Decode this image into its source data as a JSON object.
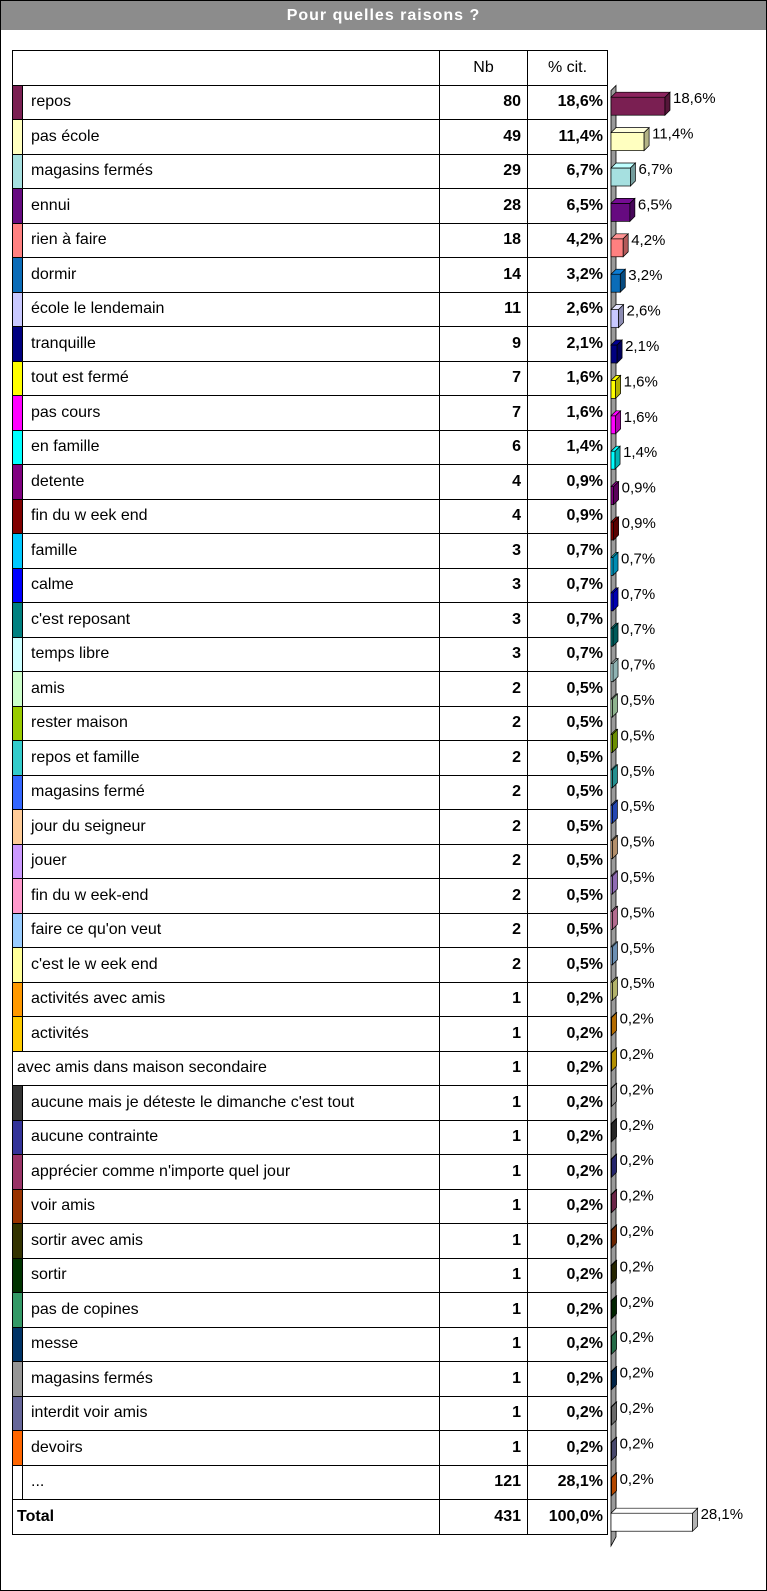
{
  "title": "Pour quelles raisons ?",
  "headers": {
    "nb": "Nb",
    "pct": "% cit."
  },
  "rows": [
    {
      "label": "repos",
      "nb": "80",
      "pct": "18,6%",
      "color": "#7a1f52"
    },
    {
      "label": "pas école",
      "nb": "49",
      "pct": "11,4%",
      "color": "#ffffc0"
    },
    {
      "label": "magasins fermés",
      "nb": "29",
      "pct": "6,7%",
      "color": "#a6e0e0"
    },
    {
      "label": "ennui",
      "nb": "28",
      "pct": "6,5%",
      "color": "#660a80"
    },
    {
      "label": "rien à faire",
      "nb": "18",
      "pct": "4,2%",
      "color": "#ff8080"
    },
    {
      "label": "dormir",
      "nb": "14",
      "pct": "3,2%",
      "color": "#0a6cb8"
    },
    {
      "label": "école le lendemain",
      "nb": "11",
      "pct": "2,6%",
      "color": "#c8c8ff"
    },
    {
      "label": "tranquille",
      "nb": "9",
      "pct": "2,1%",
      "color": "#000080"
    },
    {
      "label": "tout est fermé",
      "nb": "7",
      "pct": "1,6%",
      "color": "#ffff00"
    },
    {
      "label": "pas cours",
      "nb": "7",
      "pct": "1,6%",
      "color": "#ff00ff"
    },
    {
      "label": "en famille",
      "nb": "6",
      "pct": "1,4%",
      "color": "#00ffff"
    },
    {
      "label": "detente",
      "nb": "4",
      "pct": "0,9%",
      "color": "#800080"
    },
    {
      "label": "fin du w eek end",
      "nb": "4",
      "pct": "0,9%",
      "color": "#800000"
    },
    {
      "label": "famille",
      "nb": "3",
      "pct": "0,7%",
      "color": "#00c8ff"
    },
    {
      "label": "calme",
      "nb": "3",
      "pct": "0,7%",
      "color": "#0000ff"
    },
    {
      "label": "c'est reposant",
      "nb": "3",
      "pct": "0,7%",
      "color": "#008080"
    },
    {
      "label": "temps libre",
      "nb": "3",
      "pct": "0,7%",
      "color": "#ccffff"
    },
    {
      "label": "amis",
      "nb": "2",
      "pct": "0,5%",
      "color": "#ccffcc"
    },
    {
      "label": "rester maison",
      "nb": "2",
      "pct": "0,5%",
      "color": "#99cc00"
    },
    {
      "label": "repos et famille",
      "nb": "2",
      "pct": "0,5%",
      "color": "#33cccc"
    },
    {
      "label": "magasins fermé",
      "nb": "2",
      "pct": "0,5%",
      "color": "#3366ff"
    },
    {
      "label": "jour du seigneur",
      "nb": "2",
      "pct": "0,5%",
      "color": "#ffcc99"
    },
    {
      "label": "jouer",
      "nb": "2",
      "pct": "0,5%",
      "color": "#cc99ff"
    },
    {
      "label": "fin du w eek-end",
      "nb": "2",
      "pct": "0,5%",
      "color": "#ff99cc"
    },
    {
      "label": "faire ce qu'on veut",
      "nb": "2",
      "pct": "0,5%",
      "color": "#99ccff"
    },
    {
      "label": "c'est le w eek end",
      "nb": "2",
      "pct": "0,5%",
      "color": "#ffff99"
    },
    {
      "label": " activités avec amis",
      "nb": "1",
      "pct": "0,2%",
      "color": "#ff9900"
    },
    {
      "label": " activités",
      "nb": "1",
      "pct": "0,2%",
      "color": "#ffcc00"
    },
    {
      "label": "avec amis dans maison secondaire",
      "nb": "1",
      "pct": "0,2%",
      "color": ""
    },
    {
      "label": "aucune mais je déteste le dimanche c'est tout",
      "nb": "1",
      "pct": "0,2%",
      "color": "#333333"
    },
    {
      "label": "aucune contrainte",
      "nb": "1",
      "pct": "0,2%",
      "color": "#333399"
    },
    {
      "label": "apprécier comme n'importe quel jour",
      "nb": "1",
      "pct": "0,2%",
      "color": "#993366"
    },
    {
      "label": " voir amis",
      "nb": "1",
      "pct": "0,2%",
      "color": "#993300"
    },
    {
      "label": " sortir avec amis",
      "nb": "1",
      "pct": "0,2%",
      "color": "#333300"
    },
    {
      "label": " sortir",
      "nb": "1",
      "pct": "0,2%",
      "color": "#003300"
    },
    {
      "label": " pas de copines",
      "nb": "1",
      "pct": "0,2%",
      "color": "#339966"
    },
    {
      "label": " messe",
      "nb": "1",
      "pct": "0,2%",
      "color": "#003366"
    },
    {
      "label": " magasins fermés",
      "nb": "1",
      "pct": "0,2%",
      "color": "#969696"
    },
    {
      "label": " interdit voir amis",
      "nb": "1",
      "pct": "0,2%",
      "color": "#666699"
    },
    {
      "label": " devoirs",
      "nb": "1",
      "pct": "0,2%",
      "color": "#ff6600"
    },
    {
      "label": "...",
      "nb": "121",
      "pct": "28,1%",
      "color": "#ffffff"
    }
  ],
  "total": {
    "label": "Total",
    "nb": "431",
    "pct": "100,0%"
  },
  "chart_data": {
    "type": "bar",
    "orientation": "horizontal",
    "categories": [
      "repos",
      "pas école",
      "magasins fermés",
      "ennui",
      "rien à faire",
      "dormir",
      "école le lendemain",
      "tranquille",
      "tout est fermé",
      "pas cours",
      "en famille",
      "detente",
      "fin du w eek end",
      "famille",
      "calme",
      "c'est reposant",
      "temps libre",
      "amis",
      "rester maison",
      "repos et famille",
      "magasins fermé",
      "jour du seigneur",
      "jouer",
      "fin du w eek-end",
      "faire ce qu'on veut",
      "c'est le w eek end",
      " activités avec amis",
      " activités",
      "avec amis dans maison secondaire",
      "aucune mais je déteste le dimanche c'est tout",
      "aucune contrainte",
      "apprécier comme n'importe quel jour",
      " voir amis",
      " sortir avec amis",
      " sortir",
      " pas de copines",
      " messe",
      " magasins fermés",
      " interdit voir amis",
      " devoirs",
      "..."
    ],
    "values": [
      18.6,
      11.4,
      6.7,
      6.5,
      4.2,
      3.2,
      2.6,
      2.1,
      1.6,
      1.6,
      1.4,
      0.9,
      0.9,
      0.7,
      0.7,
      0.7,
      0.7,
      0.5,
      0.5,
      0.5,
      0.5,
      0.5,
      0.5,
      0.5,
      0.5,
      0.5,
      0.2,
      0.2,
      0.2,
      0.2,
      0.2,
      0.2,
      0.2,
      0.2,
      0.2,
      0.2,
      0.2,
      0.2,
      0.2,
      0.2,
      28.1
    ],
    "labels": [
      "18,6%",
      "11,4%",
      "6,7%",
      "6,5%",
      "4,2%",
      "3,2%",
      "2,6%",
      "2,1%",
      "1,6%",
      "1,6%",
      "1,4%",
      "0,9%",
      "0,9%",
      "0,7%",
      "0,7%",
      "0,7%",
      "0,7%",
      "0,5%",
      "0,5%",
      "0,5%",
      "0,5%",
      "0,5%",
      "0,5%",
      "0,5%",
      "0,5%",
      "0,5%",
      "0,2%",
      "0,2%",
      "0,2%",
      "0,2%",
      "0,2%",
      "0,2%",
      "0,2%",
      "0,2%",
      "0,2%",
      "0,2%",
      "0,2%",
      "0,2%",
      "0,2%",
      "0,2%",
      "28,1%"
    ],
    "unit": "% cit."
  }
}
